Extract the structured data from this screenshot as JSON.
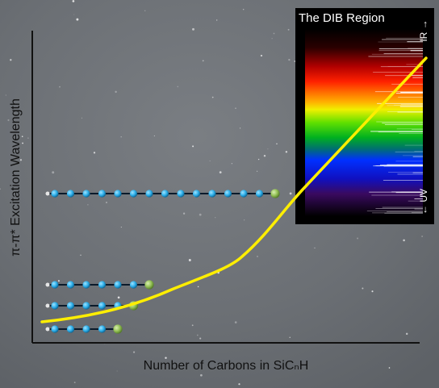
{
  "figure": {
    "y_axis_label": "π-π* Excitation Wavelength",
    "x_axis_label": "Number of Carbons in SiCₙH"
  },
  "inset": {
    "title": "The DIB Region",
    "ir_label": "IR →",
    "uv_label": "← UV"
  },
  "molecules": [
    {
      "carbon_atoms": 14
    },
    {
      "carbon_atoms": 6
    },
    {
      "carbon_atoms": 5
    },
    {
      "carbon_atoms": 4
    }
  ],
  "colors": {
    "background": "#6d7176",
    "axis": "#111111",
    "curve": "#ffee00",
    "carbon_atom": "#2fb0ea",
    "silicon_atom": "#93c055",
    "inset_background": "#000000"
  }
}
